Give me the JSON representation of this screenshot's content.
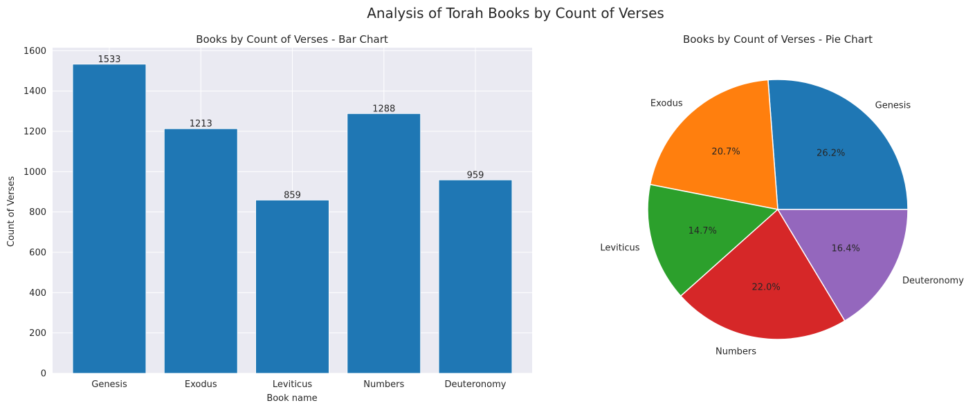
{
  "suptitle": "Analysis of Torah Books by Count of Verses",
  "chart_data": [
    {
      "type": "bar",
      "title": "Books by Count of Verses - Bar Chart",
      "xlabel": "Book name",
      "ylabel": "Count of Verses",
      "categories": [
        "Genesis",
        "Exodus",
        "Leviticus",
        "Numbers",
        "Deuteronomy"
      ],
      "values": [
        1533,
        1213,
        859,
        1288,
        959
      ],
      "data_labels": [
        "1533",
        "1213",
        "859",
        "1288",
        "959"
      ],
      "ylim": [
        0,
        1600
      ],
      "yticks": [
        0,
        200,
        400,
        600,
        800,
        1000,
        1200,
        1400,
        1600
      ],
      "grid": true,
      "bar_color": "#1f77b4",
      "background": "#eaeaf2"
    },
    {
      "type": "pie",
      "title": "Books by Count of Verses - Pie Chart",
      "labels": [
        "Genesis",
        "Exodus",
        "Leviticus",
        "Numbers",
        "Deuteronomy"
      ],
      "values": [
        1533,
        1213,
        859,
        1288,
        959
      ],
      "percent_labels": [
        "26.2%",
        "20.7%",
        "14.7%",
        "22.0%",
        "16.4%"
      ],
      "colors": [
        "#1f77b4",
        "#ff7f0e",
        "#2ca02c",
        "#d62728",
        "#9467bd"
      ]
    }
  ]
}
